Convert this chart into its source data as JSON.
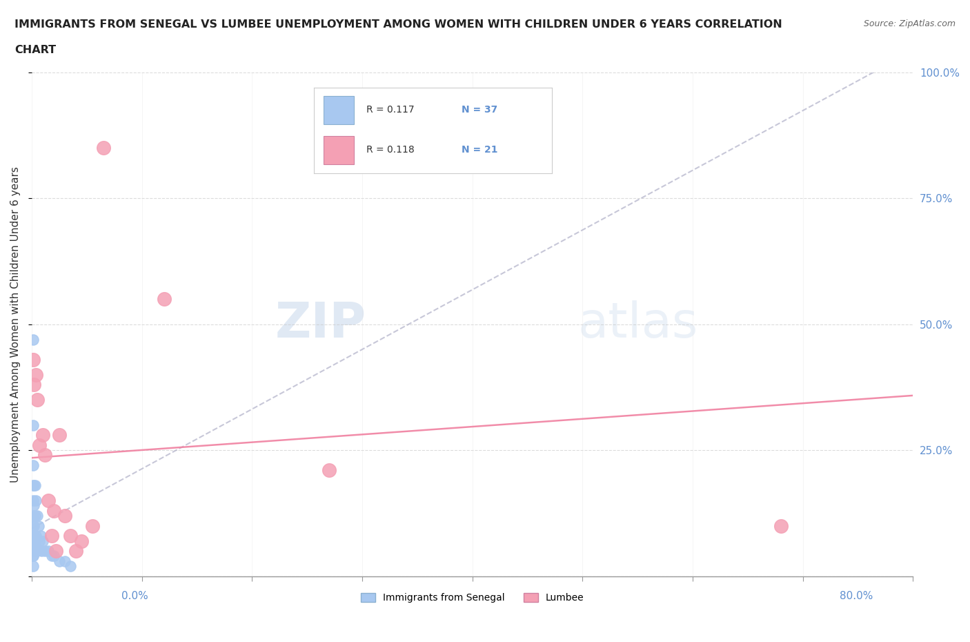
{
  "title_line1": "IMMIGRANTS FROM SENEGAL VS LUMBEE UNEMPLOYMENT AMONG WOMEN WITH CHILDREN UNDER 6 YEARS CORRELATION",
  "title_line2": "CHART",
  "source": "Source: ZipAtlas.com",
  "ylabel": "Unemployment Among Women with Children Under 6 years",
  "xlim": [
    0,
    0.8
  ],
  "ylim": [
    0,
    1.0
  ],
  "x_ticks": [
    0.0,
    0.1,
    0.2,
    0.3,
    0.4,
    0.5,
    0.6,
    0.7,
    0.8
  ],
  "y_ticks": [
    0.0,
    0.25,
    0.5,
    0.75,
    1.0
  ],
  "y_tick_labels": [
    "",
    "25.0%",
    "50.0%",
    "75.0%",
    "100.0%"
  ],
  "senegal_R": 0.117,
  "senegal_N": 37,
  "lumbee_R": 0.118,
  "lumbee_N": 21,
  "senegal_color": "#a8c8f0",
  "lumbee_color": "#f4a0b4",
  "senegal_trend_color": "#b0b0c8",
  "lumbee_trend_color": "#f080a0",
  "right_axis_color": "#6090d0",
  "background_color": "#ffffff",
  "watermark_zip": "ZIP",
  "watermark_atlas": "atlas",
  "senegal_x": [
    0.001,
    0.001,
    0.001,
    0.001,
    0.001,
    0.001,
    0.001,
    0.001,
    0.001,
    0.001,
    0.002,
    0.002,
    0.002,
    0.002,
    0.002,
    0.003,
    0.003,
    0.003,
    0.004,
    0.004,
    0.005,
    0.005,
    0.006,
    0.007,
    0.008,
    0.009,
    0.01,
    0.012,
    0.015,
    0.018,
    0.02,
    0.025,
    0.03,
    0.035,
    0.001,
    0.001,
    0.002
  ],
  "senegal_y": [
    0.47,
    0.3,
    0.22,
    0.18,
    0.15,
    0.12,
    0.1,
    0.08,
    0.06,
    0.04,
    0.18,
    0.14,
    0.1,
    0.08,
    0.05,
    0.18,
    0.12,
    0.07,
    0.15,
    0.08,
    0.12,
    0.05,
    0.1,
    0.07,
    0.08,
    0.05,
    0.07,
    0.05,
    0.05,
    0.04,
    0.04,
    0.03,
    0.03,
    0.02,
    0.04,
    0.02,
    0.06
  ],
  "lumbee_x": [
    0.001,
    0.002,
    0.004,
    0.005,
    0.007,
    0.01,
    0.012,
    0.015,
    0.018,
    0.02,
    0.022,
    0.025,
    0.03,
    0.035,
    0.04,
    0.045,
    0.055,
    0.065,
    0.12,
    0.27,
    0.68
  ],
  "lumbee_y": [
    0.43,
    0.38,
    0.4,
    0.35,
    0.26,
    0.28,
    0.24,
    0.15,
    0.08,
    0.13,
    0.05,
    0.28,
    0.12,
    0.08,
    0.05,
    0.07,
    0.1,
    0.85,
    0.55,
    0.21,
    0.1
  ]
}
